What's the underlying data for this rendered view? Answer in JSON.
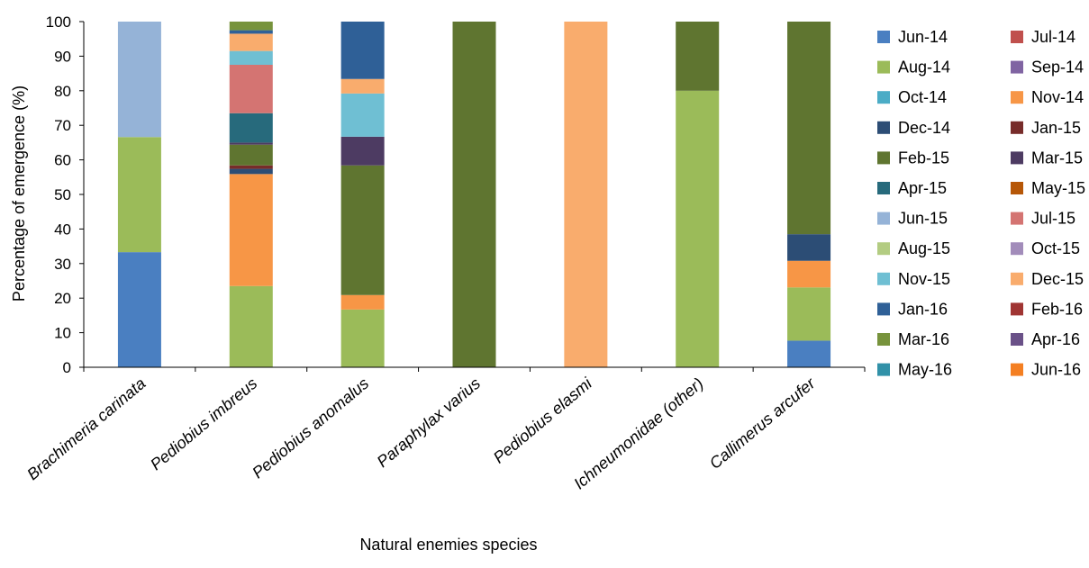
{
  "chart_data": {
    "type": "bar",
    "stacked": true,
    "xlabel": "Natural enemies species",
    "ylabel": "Percentage of emergence (%)",
    "ylim": [
      0,
      100
    ],
    "yticks": [
      0,
      10,
      20,
      30,
      40,
      50,
      60,
      70,
      80,
      90,
      100
    ],
    "grid": false,
    "legend_position": "right",
    "categories": [
      "Brachimeria carinata",
      "Pediobius imbreus",
      "Pediobius anomalus",
      "Paraphylax varius",
      "Pediobius elasmi",
      "Ichneumonidae (other)",
      "Callimerus arcufer"
    ],
    "series": [
      {
        "name": "Jun-14",
        "color": "#4a7fc1",
        "values": [
          33.3,
          0,
          0,
          0,
          0,
          0,
          7.7
        ]
      },
      {
        "name": "Jul-14",
        "color": "#c0504d",
        "values": [
          0,
          0,
          0,
          0,
          0,
          0,
          0
        ]
      },
      {
        "name": "Aug-14",
        "color": "#9bbb59",
        "values": [
          33.3,
          23.5,
          16.7,
          0,
          0,
          80,
          15.4
        ]
      },
      {
        "name": "Sep-14",
        "color": "#8064a2",
        "values": [
          0,
          0,
          0,
          0,
          0,
          0,
          0
        ]
      },
      {
        "name": "Oct-14",
        "color": "#4bacc6",
        "values": [
          0,
          0,
          0,
          0,
          0,
          0,
          0
        ]
      },
      {
        "name": "Nov-14",
        "color": "#f79646",
        "values": [
          0,
          32.4,
          4.2,
          0,
          0,
          0,
          7.7
        ]
      },
      {
        "name": "Dec-14",
        "color": "#2c4d75",
        "values": [
          0,
          1.5,
          0,
          0,
          0,
          0,
          7.7
        ]
      },
      {
        "name": "Jan-15",
        "color": "#772c2a",
        "values": [
          0,
          1.0,
          0,
          0,
          0,
          0,
          0
        ]
      },
      {
        "name": "Feb-15",
        "color": "#5f7530",
        "values": [
          0,
          6.0,
          37.5,
          100,
          0,
          20,
          61.5
        ]
      },
      {
        "name": "Mar-15",
        "color": "#4d3b62",
        "values": [
          0,
          0.6,
          8.3,
          0,
          0,
          0,
          0
        ]
      },
      {
        "name": "Apr-15",
        "color": "#276a7c",
        "values": [
          0,
          8.5,
          0,
          0,
          0,
          0,
          0
        ]
      },
      {
        "name": "May-15",
        "color": "#b65708",
        "values": [
          0,
          0,
          0,
          0,
          0,
          0,
          0
        ]
      },
      {
        "name": "Jun-15",
        "color": "#95b3d7",
        "values": [
          33.4,
          0,
          0,
          0,
          0,
          0,
          0
        ]
      },
      {
        "name": "Jul-15",
        "color": "#d47472",
        "values": [
          0,
          14.0,
          0,
          0,
          0,
          0,
          0
        ]
      },
      {
        "name": "Aug-15",
        "color": "#b3cc82",
        "values": [
          0,
          0,
          0,
          0,
          0,
          0,
          0
        ]
      },
      {
        "name": "Oct-15",
        "color": "#a28cba",
        "values": [
          0,
          0,
          0,
          0,
          0,
          0,
          0
        ]
      },
      {
        "name": "Nov-15",
        "color": "#6fbfd3",
        "values": [
          0,
          4.0,
          12.5,
          0,
          0,
          0,
          0
        ]
      },
      {
        "name": "Dec-15",
        "color": "#f9ac6d",
        "values": [
          0,
          5.0,
          4.2,
          0,
          100,
          0,
          0
        ]
      },
      {
        "name": "Jan-16",
        "color": "#2f6097",
        "values": [
          0,
          1.0,
          16.6,
          0,
          0,
          0,
          0
        ]
      },
      {
        "name": "Feb-16",
        "color": "#a03533",
        "values": [
          0,
          0,
          0,
          0,
          0,
          0,
          0
        ]
      },
      {
        "name": "Mar-16",
        "color": "#77933c",
        "values": [
          0,
          2.5,
          0,
          0,
          0,
          0,
          0
        ]
      },
      {
        "name": "Apr-16",
        "color": "#6a5188",
        "values": [
          0,
          0,
          0,
          0,
          0,
          0,
          0
        ]
      },
      {
        "name": "May-16",
        "color": "#3191a8",
        "values": [
          0,
          0,
          0,
          0,
          0,
          0,
          0
        ]
      },
      {
        "name": "Jun-16",
        "color": "#f47f22",
        "values": [
          0,
          0,
          0,
          0,
          0,
          0,
          0
        ]
      }
    ]
  }
}
